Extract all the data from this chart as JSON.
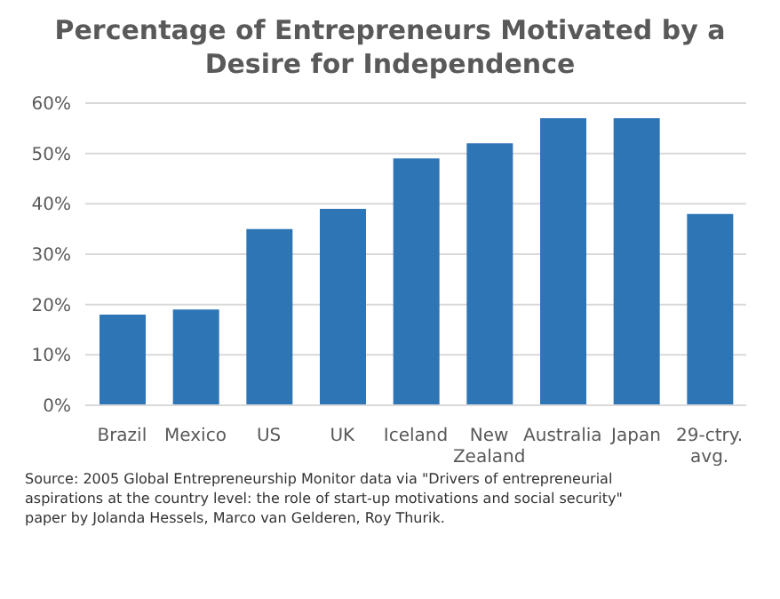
{
  "chart_data": {
    "type": "bar",
    "title": "Percentage of Entrepreneurs Motivated by a Desire for Independence",
    "categories": [
      "Brazil",
      "Mexico",
      "US",
      "UK",
      "Iceland",
      "New Zealand",
      "Australia",
      "Japan",
      "29-ctry. avg."
    ],
    "values": [
      18,
      19,
      35,
      39,
      49,
      52,
      57,
      57,
      38
    ],
    "color": "#2e75b6",
    "ylim": [
      0,
      60
    ],
    "yticks": [
      {
        "value": 0,
        "label": "0%"
      },
      {
        "value": 10,
        "label": "10%"
      },
      {
        "value": 20,
        "label": "20%"
      },
      {
        "value": 30,
        "label": "30%"
      },
      {
        "value": 40,
        "label": "40%"
      },
      {
        "value": 50,
        "label": "50%"
      },
      {
        "value": 60,
        "label": "60%"
      }
    ],
    "grid": "y",
    "legend": false,
    "annotations": [
      "Source: 2005 Global Entrepreneurship Monitor data via \"Drivers of entrepreneurial aspirations at the country level: the role of start-up motivations and social security\" paper by Jolanda Hessels, Marco van Gelderen, Roy Thurik."
    ]
  }
}
